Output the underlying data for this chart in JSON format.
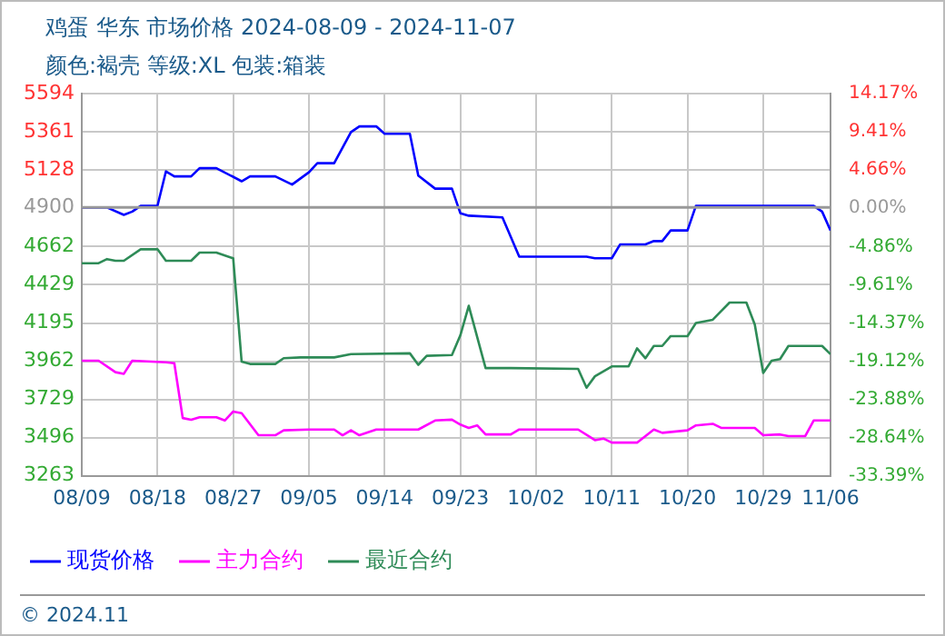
{
  "chart_data": {
    "type": "line",
    "title": "鸡蛋 华东 市场价格 2024-08-09 - 2024-11-07",
    "subtitle": "颜色:褐壳 等级:XL 包装:箱装",
    "xlim": [
      "2024-08-09",
      "2024-11-06"
    ],
    "xticks": [
      {
        "value": "2024-08-09",
        "label": "08/09"
      },
      {
        "value": "2024-08-18",
        "label": "08/18"
      },
      {
        "value": "2024-08-27",
        "label": "08/27"
      },
      {
        "value": "2024-09-05",
        "label": "09/05"
      },
      {
        "value": "2024-09-14",
        "label": "09/14"
      },
      {
        "value": "2024-09-23",
        "label": "09/23"
      },
      {
        "value": "2024-10-02",
        "label": "10/02"
      },
      {
        "value": "2024-10-11",
        "label": "10/11"
      },
      {
        "value": "2024-10-20",
        "label": "10/20"
      },
      {
        "value": "2024-10-29",
        "label": "10/29"
      },
      {
        "value": "2024-11-06",
        "label": "11/06"
      }
    ],
    "ylim": [
      3263,
      5594
    ],
    "yticks": [
      3263,
      3496,
      3729,
      3962,
      4195,
      4429,
      4662,
      4900,
      5128,
      5361,
      5594
    ],
    "y2lim": [
      -33.39,
      14.17
    ],
    "y2ticks": [
      {
        "value": -33.39,
        "label": "-33.39%"
      },
      {
        "value": -28.64,
        "label": "-28.64%"
      },
      {
        "value": -23.88,
        "label": "-23.88%"
      },
      {
        "value": -19.12,
        "label": "-19.12%"
      },
      {
        "value": -14.37,
        "label": "-14.37%"
      },
      {
        "value": -9.61,
        "label": "-9.61%"
      },
      {
        "value": -4.86,
        "label": "-4.86%"
      },
      {
        "value": 0,
        "label": "0.00%"
      },
      {
        "value": 4.66,
        "label": "4.66%"
      },
      {
        "value": 9.41,
        "label": "9.41%"
      },
      {
        "value": 14.17,
        "label": "14.17%"
      }
    ],
    "ref_lines": [
      {
        "axis": "y",
        "value": 4900,
        "color": "#999999"
      }
    ],
    "grid": true,
    "legend": "bottom",
    "annotations": [
      "© 2024.11"
    ],
    "series": [
      {
        "name": "现货价格",
        "color": "#0000ff",
        "x": [
          "2024-08-09",
          "2024-08-12",
          "2024-08-14",
          "2024-08-15",
          "2024-08-16",
          "2024-08-18",
          "2024-08-19",
          "2024-08-20",
          "2024-08-22",
          "2024-08-23",
          "2024-08-25",
          "2024-08-28",
          "2024-08-29",
          "2024-09-01",
          "2024-09-03",
          "2024-09-05",
          "2024-09-06",
          "2024-09-08",
          "2024-09-10",
          "2024-09-11",
          "2024-09-13",
          "2024-09-14",
          "2024-09-17",
          "2024-09-18",
          "2024-09-20",
          "2024-09-22",
          "2024-09-23",
          "2024-09-24",
          "2024-09-28",
          "2024-09-30",
          "2024-10-08",
          "2024-10-09",
          "2024-10-11",
          "2024-10-12",
          "2024-10-15",
          "2024-10-16",
          "2024-10-17",
          "2024-10-18",
          "2024-10-20",
          "2024-10-21",
          "2024-11-04",
          "2024-11-05",
          "2024-11-06"
        ],
        "values": [
          4900,
          4900,
          4855,
          4875,
          4910,
          4910,
          5120,
          5090,
          5090,
          5140,
          5140,
          5060,
          5090,
          5090,
          5040,
          5115,
          5170,
          5170,
          5360,
          5395,
          5395,
          5350,
          5350,
          5095,
          5015,
          5015,
          4865,
          4850,
          4840,
          4600,
          4600,
          4590,
          4590,
          4675,
          4675,
          4695,
          4695,
          4760,
          4760,
          4910,
          4910,
          4875,
          4760
        ]
      },
      {
        "name": "主力合约",
        "color": "#ff00ff",
        "x": [
          "2024-08-09",
          "2024-08-11",
          "2024-08-13",
          "2024-08-14",
          "2024-08-15",
          "2024-08-19",
          "2024-08-20",
          "2024-08-21",
          "2024-08-22",
          "2024-08-23",
          "2024-08-25",
          "2024-08-26",
          "2024-08-27",
          "2024-08-28",
          "2024-08-30",
          "2024-09-01",
          "2024-09-02",
          "2024-09-05",
          "2024-09-08",
          "2024-09-09",
          "2024-09-10",
          "2024-09-11",
          "2024-09-13",
          "2024-09-18",
          "2024-09-20",
          "2024-09-22",
          "2024-09-23",
          "2024-09-24",
          "2024-09-25",
          "2024-09-26",
          "2024-09-29",
          "2024-09-30",
          "2024-10-07",
          "2024-10-09",
          "2024-10-10",
          "2024-10-11",
          "2024-10-14",
          "2024-10-15",
          "2024-10-16",
          "2024-10-17",
          "2024-10-20",
          "2024-10-21",
          "2024-10-23",
          "2024-10-24",
          "2024-10-28",
          "2024-10-29",
          "2024-10-31",
          "2024-11-01",
          "2024-11-03",
          "2024-11-04",
          "2024-11-06"
        ],
        "values": [
          3965,
          3965,
          3895,
          3885,
          3965,
          3955,
          3950,
          3615,
          3605,
          3620,
          3620,
          3600,
          3655,
          3645,
          3510,
          3510,
          3540,
          3545,
          3545,
          3510,
          3540,
          3510,
          3545,
          3545,
          3600,
          3605,
          3575,
          3555,
          3570,
          3515,
          3515,
          3545,
          3545,
          3480,
          3490,
          3465,
          3465,
          3505,
          3545,
          3525,
          3540,
          3570,
          3580,
          3555,
          3555,
          3510,
          3515,
          3505,
          3505,
          3600,
          3600
        ]
      },
      {
        "name": "最近合约",
        "color": "#2e8b57",
        "x": [
          "2024-08-09",
          "2024-08-11",
          "2024-08-12",
          "2024-08-13",
          "2024-08-14",
          "2024-08-16",
          "2024-08-18",
          "2024-08-19",
          "2024-08-22",
          "2024-08-23",
          "2024-08-25",
          "2024-08-27",
          "2024-08-28",
          "2024-08-29",
          "2024-09-01",
          "2024-09-02",
          "2024-09-04",
          "2024-09-08",
          "2024-09-10",
          "2024-09-17",
          "2024-09-18",
          "2024-09-19",
          "2024-09-22",
          "2024-09-23",
          "2024-09-24",
          "2024-09-26",
          "2024-09-29",
          "2024-10-07",
          "2024-10-08",
          "2024-10-09",
          "2024-10-11",
          "2024-10-13",
          "2024-10-14",
          "2024-10-15",
          "2024-10-16",
          "2024-10-17",
          "2024-10-18",
          "2024-10-20",
          "2024-10-21",
          "2024-10-23",
          "2024-10-25",
          "2024-10-27",
          "2024-10-28",
          "2024-10-29",
          "2024-10-30",
          "2024-10-31",
          "2024-11-01",
          "2024-11-05",
          "2024-11-06"
        ],
        "values": [
          4560,
          4560,
          4585,
          4575,
          4575,
          4645,
          4645,
          4575,
          4575,
          4625,
          4625,
          4590,
          3960,
          3945,
          3945,
          3980,
          3985,
          3985,
          4005,
          4010,
          3940,
          3995,
          4000,
          4120,
          4300,
          3920,
          3920,
          3915,
          3800,
          3870,
          3930,
          3930,
          4040,
          3980,
          4055,
          4055,
          4115,
          4115,
          4195,
          4215,
          4320,
          4320,
          4185,
          3890,
          3965,
          3975,
          4055,
          4055,
          4005
        ]
      }
    ]
  }
}
